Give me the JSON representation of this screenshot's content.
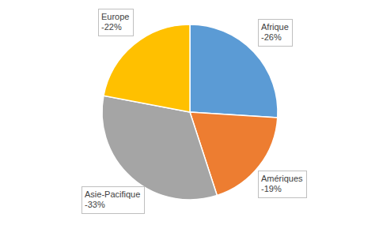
{
  "chart_data": {
    "type": "pie",
    "categories": [
      "Afrique",
      "Amériques",
      "Asie-Pacifique",
      "Europe"
    ],
    "values": [
      -26,
      -19,
      -33,
      -22
    ],
    "value_labels": [
      "-26%",
      "-19%",
      "-33%",
      "-22%"
    ],
    "colors": [
      "#5b9bd5",
      "#ed7d31",
      "#a5a5a5",
      "#ffc000"
    ],
    "data_labels": true
  }
}
